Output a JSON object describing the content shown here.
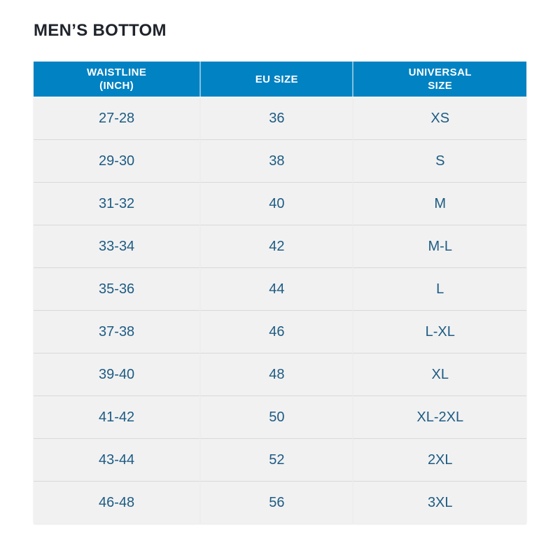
{
  "page": {
    "title": "MEN’S BOTTOM"
  },
  "colors": {
    "header_bg": "#0082c3",
    "cell_text": "#1d5b82",
    "title_color": "#20242c",
    "cell_bg": "#f1f1f2",
    "grid_line": "#d9d9d9"
  },
  "table": {
    "columns": [
      {
        "label": "WAISTLINE\n(INCH)"
      },
      {
        "label": "EU SIZE"
      },
      {
        "label": "UNIVERSAL\nSIZE"
      }
    ],
    "rows": [
      {
        "waistline": "27-28",
        "eu": "36",
        "universal": "XS"
      },
      {
        "waistline": "29-30",
        "eu": "38",
        "universal": "S"
      },
      {
        "waistline": "31-32",
        "eu": "40",
        "universal": "M"
      },
      {
        "waistline": "33-34",
        "eu": "42",
        "universal": "M-L"
      },
      {
        "waistline": "35-36",
        "eu": "44",
        "universal": "L"
      },
      {
        "waistline": "37-38",
        "eu": "46",
        "universal": "L-XL"
      },
      {
        "waistline": "39-40",
        "eu": "48",
        "universal": "XL"
      },
      {
        "waistline": "41-42",
        "eu": "50",
        "universal": "XL-2XL"
      },
      {
        "waistline": "43-44",
        "eu": "52",
        "universal": "2XL"
      },
      {
        "waistline": "46-48",
        "eu": "56",
        "universal": "3XL"
      }
    ]
  }
}
